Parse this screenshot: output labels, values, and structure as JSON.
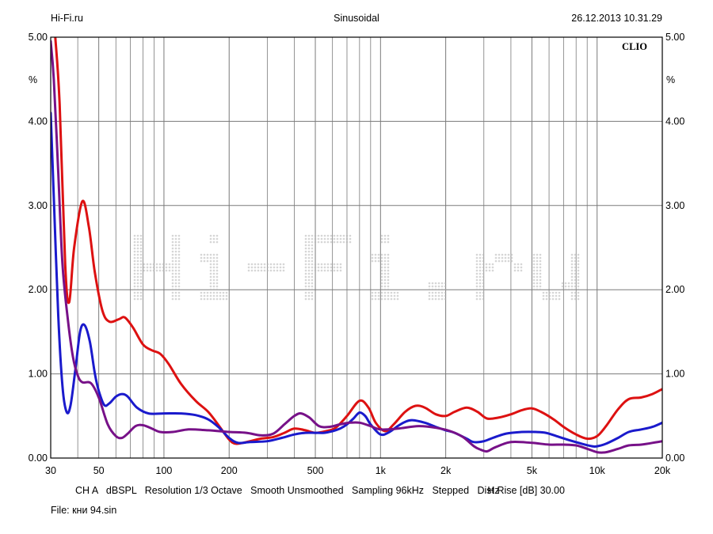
{
  "header": {
    "left": "Hi-Fi.ru",
    "center": "Sinusoidal",
    "right": "26.12.2013 10.31.29"
  },
  "brand": "CLIO",
  "watermark": "Hi-Fi.ru",
  "footer": {
    "info_line": "CH A   dBSPL   Resolution 1/3 Octave   Smooth Unsmoothed   Sampling 96kHz   Stepped   Dist Rise [dB] 30.00",
    "file_line": "File: кни 94.sin"
  },
  "chart_data": {
    "type": "line",
    "title": "",
    "xlabel": "Hz",
    "ylabel": "%",
    "x_scale": "log",
    "xlim": [
      30,
      20000
    ],
    "ylim": [
      0,
      5
    ],
    "grid": true,
    "x_ticks": [
      {
        "value": 30,
        "label": "30"
      },
      {
        "value": 50,
        "label": "50"
      },
      {
        "value": 100,
        "label": "100"
      },
      {
        "value": 200,
        "label": "200"
      },
      {
        "value": 500,
        "label": "500"
      },
      {
        "value": 1000,
        "label": "1k"
      },
      {
        "value": 2000,
        "label": "2k"
      },
      {
        "value": 5000,
        "label": "5k"
      },
      {
        "value": 10000,
        "label": "10k"
      },
      {
        "value": 20000,
        "label": "20k"
      }
    ],
    "y_ticks": [
      {
        "value": 0,
        "label": "0.00"
      },
      {
        "value": 1,
        "label": "1.00"
      },
      {
        "value": 2,
        "label": "2.00"
      },
      {
        "value": 3,
        "label": "3.00"
      },
      {
        "value": 4,
        "label": "4.00"
      },
      {
        "value": 5,
        "label": "5.00"
      }
    ],
    "series": [
      {
        "color": "#dd1111",
        "points": [
          [
            31.5,
            5.0
          ],
          [
            33,
            4.2
          ],
          [
            35,
            2.3
          ],
          [
            36.5,
            1.85
          ],
          [
            38.5,
            2.5
          ],
          [
            42,
            3.05
          ],
          [
            45,
            2.75
          ],
          [
            48,
            2.2
          ],
          [
            52,
            1.75
          ],
          [
            56,
            1.62
          ],
          [
            62,
            1.65
          ],
          [
            66,
            1.67
          ],
          [
            72,
            1.55
          ],
          [
            80,
            1.35
          ],
          [
            88,
            1.28
          ],
          [
            96,
            1.24
          ],
          [
            105,
            1.12
          ],
          [
            120,
            0.88
          ],
          [
            140,
            0.68
          ],
          [
            160,
            0.55
          ],
          [
            180,
            0.38
          ],
          [
            200,
            0.22
          ],
          [
            215,
            0.17
          ],
          [
            240,
            0.19
          ],
          [
            280,
            0.23
          ],
          [
            320,
            0.25
          ],
          [
            360,
            0.3
          ],
          [
            400,
            0.35
          ],
          [
            450,
            0.33
          ],
          [
            500,
            0.3
          ],
          [
            560,
            0.32
          ],
          [
            620,
            0.36
          ],
          [
            700,
            0.5
          ],
          [
            800,
            0.68
          ],
          [
            880,
            0.6
          ],
          [
            950,
            0.42
          ],
          [
            1050,
            0.32
          ],
          [
            1150,
            0.4
          ],
          [
            1300,
            0.55
          ],
          [
            1450,
            0.62
          ],
          [
            1600,
            0.6
          ],
          [
            1800,
            0.52
          ],
          [
            2000,
            0.5
          ],
          [
            2200,
            0.55
          ],
          [
            2500,
            0.6
          ],
          [
            2800,
            0.55
          ],
          [
            3100,
            0.47
          ],
          [
            3500,
            0.48
          ],
          [
            4000,
            0.52
          ],
          [
            4500,
            0.57
          ],
          [
            5000,
            0.59
          ],
          [
            5500,
            0.55
          ],
          [
            6300,
            0.46
          ],
          [
            7000,
            0.37
          ],
          [
            8000,
            0.28
          ],
          [
            9000,
            0.23
          ],
          [
            10000,
            0.26
          ],
          [
            11000,
            0.38
          ],
          [
            12500,
            0.58
          ],
          [
            14000,
            0.7
          ],
          [
            16000,
            0.72
          ],
          [
            18000,
            0.76
          ],
          [
            20000,
            0.82
          ]
        ]
      },
      {
        "color": "#1a1acc",
        "points": [
          [
            30,
            4.1
          ],
          [
            31,
            3.1
          ],
          [
            32.5,
            1.7
          ],
          [
            34,
            0.85
          ],
          [
            35.5,
            0.55
          ],
          [
            37,
            0.62
          ],
          [
            39,
            1.05
          ],
          [
            41,
            1.5
          ],
          [
            43,
            1.58
          ],
          [
            45.5,
            1.38
          ],
          [
            48,
            1.0
          ],
          [
            50,
            0.8
          ],
          [
            53,
            0.63
          ],
          [
            56,
            0.65
          ],
          [
            60,
            0.73
          ],
          [
            64,
            0.76
          ],
          [
            68,
            0.73
          ],
          [
            75,
            0.6
          ],
          [
            85,
            0.53
          ],
          [
            100,
            0.53
          ],
          [
            120,
            0.53
          ],
          [
            140,
            0.51
          ],
          [
            160,
            0.46
          ],
          [
            180,
            0.36
          ],
          [
            200,
            0.24
          ],
          [
            220,
            0.18
          ],
          [
            250,
            0.19
          ],
          [
            300,
            0.2
          ],
          [
            350,
            0.24
          ],
          [
            400,
            0.28
          ],
          [
            450,
            0.3
          ],
          [
            500,
            0.3
          ],
          [
            550,
            0.3
          ],
          [
            600,
            0.32
          ],
          [
            650,
            0.35
          ],
          [
            700,
            0.4
          ],
          [
            750,
            0.47
          ],
          [
            800,
            0.54
          ],
          [
            850,
            0.5
          ],
          [
            900,
            0.4
          ],
          [
            1000,
            0.28
          ],
          [
            1100,
            0.31
          ],
          [
            1200,
            0.38
          ],
          [
            1300,
            0.43
          ],
          [
            1400,
            0.45
          ],
          [
            1600,
            0.42
          ],
          [
            1800,
            0.37
          ],
          [
            2000,
            0.33
          ],
          [
            2200,
            0.3
          ],
          [
            2500,
            0.23
          ],
          [
            2700,
            0.19
          ],
          [
            3000,
            0.2
          ],
          [
            3300,
            0.24
          ],
          [
            3800,
            0.29
          ],
          [
            4500,
            0.31
          ],
          [
            5200,
            0.31
          ],
          [
            5800,
            0.3
          ],
          [
            6500,
            0.26
          ],
          [
            7500,
            0.21
          ],
          [
            8500,
            0.17
          ],
          [
            9500,
            0.14
          ],
          [
            10000,
            0.14
          ],
          [
            11000,
            0.17
          ],
          [
            12500,
            0.24
          ],
          [
            14000,
            0.31
          ],
          [
            16000,
            0.34
          ],
          [
            18000,
            0.37
          ],
          [
            20000,
            0.42
          ]
        ]
      },
      {
        "color": "#771188",
        "points": [
          [
            30,
            4.95
          ],
          [
            31,
            4.5
          ],
          [
            32.5,
            3.4
          ],
          [
            34,
            2.3
          ],
          [
            36,
            1.65
          ],
          [
            38,
            1.2
          ],
          [
            40,
            0.98
          ],
          [
            42,
            0.9
          ],
          [
            46,
            0.89
          ],
          [
            50,
            0.72
          ],
          [
            55,
            0.4
          ],
          [
            60,
            0.26
          ],
          [
            64,
            0.24
          ],
          [
            68,
            0.29
          ],
          [
            74,
            0.38
          ],
          [
            80,
            0.39
          ],
          [
            88,
            0.35
          ],
          [
            96,
            0.31
          ],
          [
            110,
            0.31
          ],
          [
            130,
            0.34
          ],
          [
            160,
            0.33
          ],
          [
            200,
            0.31
          ],
          [
            240,
            0.3
          ],
          [
            280,
            0.27
          ],
          [
            320,
            0.29
          ],
          [
            360,
            0.4
          ],
          [
            400,
            0.5
          ],
          [
            430,
            0.53
          ],
          [
            470,
            0.48
          ],
          [
            520,
            0.38
          ],
          [
            580,
            0.37
          ],
          [
            650,
            0.4
          ],
          [
            720,
            0.42
          ],
          [
            800,
            0.42
          ],
          [
            900,
            0.38
          ],
          [
            1000,
            0.34
          ],
          [
            1200,
            0.35
          ],
          [
            1500,
            0.38
          ],
          [
            1800,
            0.36
          ],
          [
            2100,
            0.32
          ],
          [
            2400,
            0.25
          ],
          [
            2700,
            0.14
          ],
          [
            2900,
            0.1
          ],
          [
            3100,
            0.08
          ],
          [
            3400,
            0.13
          ],
          [
            4000,
            0.19
          ],
          [
            5000,
            0.18
          ],
          [
            6000,
            0.16
          ],
          [
            7000,
            0.16
          ],
          [
            8000,
            0.15
          ],
          [
            9000,
            0.11
          ],
          [
            10000,
            0.07
          ],
          [
            11000,
            0.07
          ],
          [
            12500,
            0.11
          ],
          [
            14000,
            0.15
          ],
          [
            16000,
            0.16
          ],
          [
            18000,
            0.18
          ],
          [
            20000,
            0.2
          ]
        ]
      }
    ]
  }
}
